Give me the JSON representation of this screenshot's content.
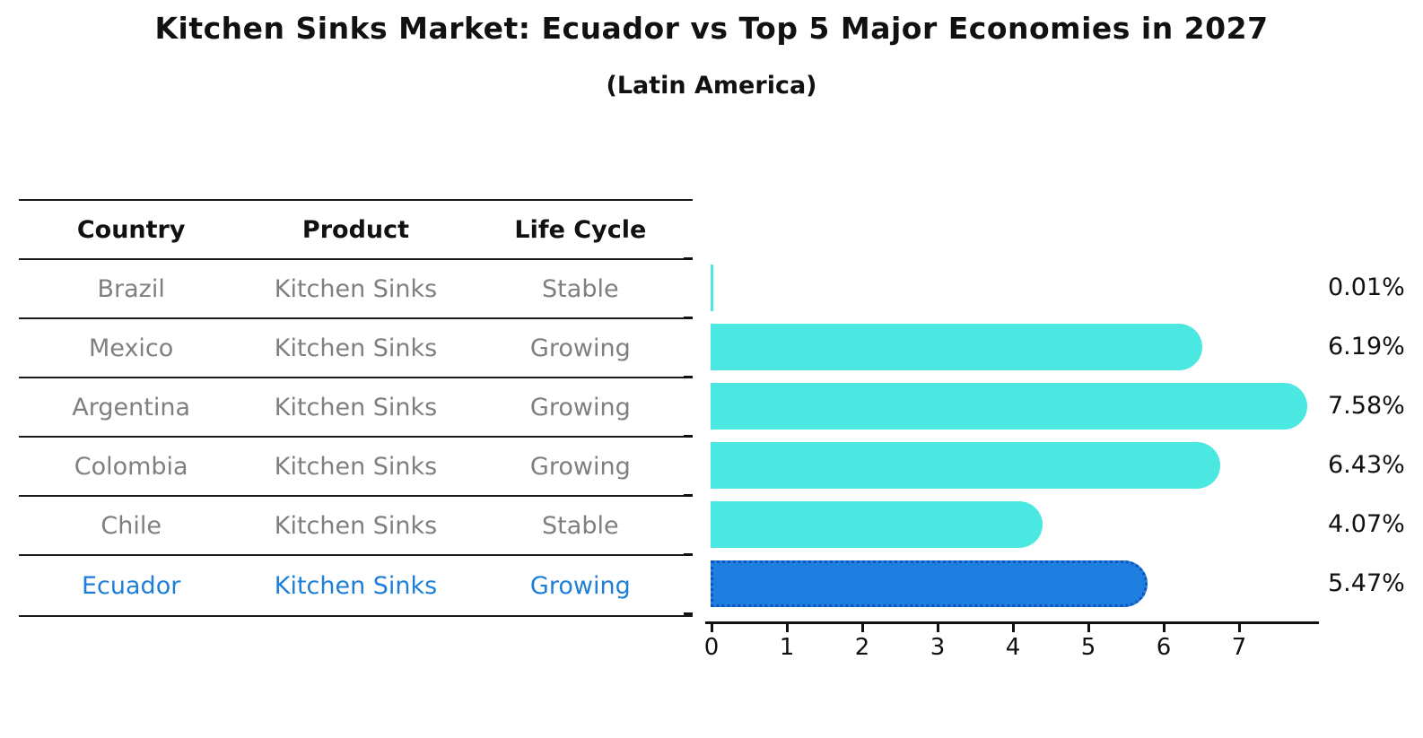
{
  "header": {
    "title": "Kitchen Sinks Market: Ecuador vs Top 5 Major Economies in 2027",
    "subtitle": "(Latin America)"
  },
  "table": {
    "columns": {
      "country": "Country",
      "product": "Product",
      "life_cycle": "Life Cycle"
    },
    "rows": [
      {
        "country": "Brazil",
        "product": "Kitchen Sinks",
        "life_cycle": "Stable",
        "highlight": false
      },
      {
        "country": "Mexico",
        "product": "Kitchen Sinks",
        "life_cycle": "Growing",
        "highlight": false
      },
      {
        "country": "Argentina",
        "product": "Kitchen Sinks",
        "life_cycle": "Growing",
        "highlight": false
      },
      {
        "country": "Colombia",
        "product": "Kitchen Sinks",
        "life_cycle": "Growing",
        "highlight": false
      },
      {
        "country": "Chile",
        "product": "Kitchen Sinks",
        "life_cycle": "Stable",
        "highlight": false
      },
      {
        "country": "Ecuador",
        "product": "Kitchen Sinks",
        "life_cycle": "Growing",
        "highlight": true
      }
    ]
  },
  "chart_data": {
    "type": "bar",
    "orientation": "horizontal",
    "title": "Kitchen Sinks Market: Ecuador vs Top 5 Major Economies in 2027",
    "subtitle": "(Latin America)",
    "categories": [
      "Brazil",
      "Mexico",
      "Argentina",
      "Colombia",
      "Chile",
      "Ecuador"
    ],
    "values": [
      0.01,
      6.19,
      7.58,
      6.43,
      4.07,
      5.47
    ],
    "value_labels": [
      "0.01%",
      "6.19%",
      "7.58%",
      "6.43%",
      "4.07%",
      "5.47%"
    ],
    "unit": "%",
    "xlim": [
      0,
      8.07
    ],
    "xticks": [
      "0",
      "1",
      "2",
      "3",
      "4",
      "5",
      "6",
      "7"
    ],
    "grid": false,
    "legend": false,
    "highlight_index": 5,
    "bar_color": "#4be8e2",
    "highlight_bar_color": "#1f7fe0",
    "highlight_border_color": "#0c55bb",
    "highlight_text_color": "#1e7fd8",
    "text_color": "#111111",
    "muted_text_color": "#7f7f7f"
  }
}
